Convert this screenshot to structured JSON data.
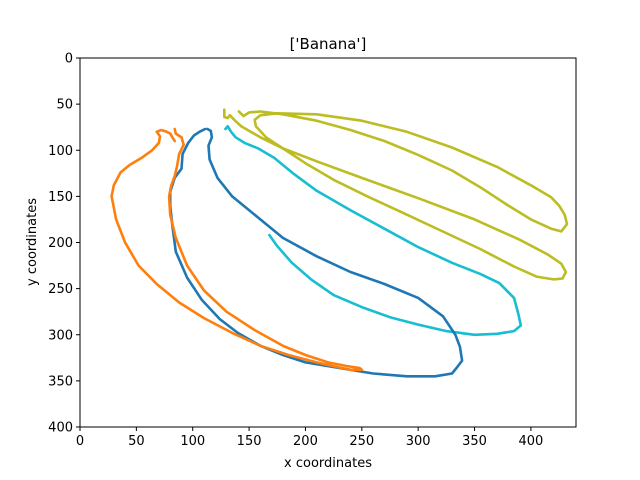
{
  "chart_data": {
    "type": "line",
    "title": "['Banana']",
    "xlabel": "x coordinates",
    "ylabel": "y coordinates",
    "xlim": [
      0,
      440
    ],
    "ylim": [
      400,
      0
    ],
    "y_inverted": true,
    "xticks": [
      0,
      50,
      100,
      150,
      200,
      250,
      300,
      350,
      400
    ],
    "yticks": [
      0,
      50,
      100,
      150,
      200,
      250,
      300,
      350,
      400
    ],
    "grid": false,
    "series": [
      {
        "color": "#bcbd22",
        "closed": false,
        "points": [
          [
            128,
            56
          ],
          [
            128,
            64
          ],
          [
            131,
            65
          ],
          [
            133,
            62
          ],
          [
            136,
            66
          ],
          [
            143,
            74
          ],
          [
            160,
            86
          ],
          [
            180,
            98
          ],
          [
            210,
            112
          ],
          [
            250,
            130
          ],
          [
            300,
            152
          ],
          [
            350,
            175
          ],
          [
            390,
            197
          ],
          [
            415,
            213
          ],
          [
            427,
            223
          ],
          [
            431,
            232
          ],
          [
            428,
            239
          ],
          [
            420,
            240
          ],
          [
            405,
            237
          ],
          [
            385,
            226
          ],
          [
            355,
            207
          ],
          [
            320,
            187
          ],
          [
            285,
            167
          ],
          [
            255,
            150
          ],
          [
            225,
            132
          ],
          [
            200,
            114
          ],
          [
            180,
            98
          ],
          [
            165,
            86
          ],
          [
            156,
            74
          ],
          [
            155,
            67
          ],
          [
            160,
            62
          ],
          [
            175,
            60
          ],
          [
            210,
            61
          ],
          [
            250,
            68
          ],
          [
            290,
            80
          ],
          [
            330,
            97
          ],
          [
            370,
            118
          ],
          [
            400,
            138
          ],
          [
            418,
            151
          ],
          [
            425,
            160
          ],
          [
            430,
            170
          ],
          [
            432,
            180
          ],
          [
            427,
            188
          ],
          [
            418,
            185
          ],
          [
            400,
            175
          ],
          [
            380,
            160
          ],
          [
            355,
            140
          ],
          [
            330,
            122
          ],
          [
            300,
            105
          ],
          [
            270,
            90
          ],
          [
            240,
            78
          ],
          [
            210,
            68
          ],
          [
            180,
            61
          ],
          [
            160,
            58
          ],
          [
            150,
            59
          ],
          [
            145,
            63
          ],
          [
            141,
            58
          ]
        ]
      },
      {
        "color": "#17becf",
        "closed": false,
        "points": [
          [
            129,
            77
          ],
          [
            131,
            74
          ],
          [
            134,
            80
          ],
          [
            138,
            86
          ],
          [
            146,
            92
          ],
          [
            158,
            98
          ],
          [
            172,
            108
          ],
          [
            190,
            126
          ],
          [
            210,
            144
          ],
          [
            240,
            165
          ],
          [
            270,
            185
          ],
          [
            300,
            205
          ],
          [
            330,
            222
          ],
          [
            355,
            234
          ],
          [
            372,
            244
          ],
          [
            385,
            260
          ],
          [
            389,
            278
          ],
          [
            391,
            290
          ],
          [
            385,
            296
          ],
          [
            370,
            299
          ],
          [
            350,
            300
          ],
          [
            325,
            296
          ],
          [
            300,
            289
          ],
          [
            275,
            281
          ],
          [
            250,
            270
          ],
          [
            225,
            257
          ],
          [
            205,
            240
          ],
          [
            188,
            222
          ],
          [
            175,
            204
          ],
          [
            168,
            192
          ]
        ]
      },
      {
        "color": "#1f77b4",
        "closed": false,
        "points": [
          [
            113,
            77
          ],
          [
            116,
            79
          ],
          [
            117,
            86
          ],
          [
            114,
            95
          ],
          [
            115,
            110
          ],
          [
            122,
            130
          ],
          [
            135,
            150
          ],
          [
            155,
            170
          ],
          [
            180,
            195
          ],
          [
            210,
            215
          ],
          [
            240,
            232
          ],
          [
            270,
            245
          ],
          [
            300,
            260
          ],
          [
            322,
            280
          ],
          [
            333,
            300
          ],
          [
            337,
            313
          ],
          [
            339,
            328
          ],
          [
            334,
            336
          ],
          [
            330,
            342
          ],
          [
            315,
            345
          ],
          [
            290,
            345
          ],
          [
            260,
            342
          ],
          [
            230,
            336
          ],
          [
            200,
            330
          ],
          [
            180,
            322
          ],
          [
            160,
            312
          ],
          [
            140,
            298
          ],
          [
            124,
            283
          ],
          [
            108,
            262
          ],
          [
            95,
            238
          ],
          [
            85,
            210
          ],
          [
            82,
            182
          ],
          [
            80,
            160
          ],
          [
            80,
            145
          ],
          [
            84,
            130
          ],
          [
            90,
            120
          ],
          [
            91,
            104
          ],
          [
            96,
            92
          ],
          [
            101,
            84
          ],
          [
            106,
            80
          ],
          [
            111,
            77
          ]
        ]
      },
      {
        "color": "#ff7f0e",
        "closed": false,
        "points": [
          [
            84,
            77
          ],
          [
            85,
            82
          ],
          [
            90,
            86
          ],
          [
            92,
            94
          ],
          [
            88,
            104
          ],
          [
            86,
            118
          ],
          [
            84,
            128
          ],
          [
            81,
            138
          ],
          [
            79,
            150
          ],
          [
            80,
            170
          ],
          [
            85,
            195
          ],
          [
            95,
            225
          ],
          [
            110,
            252
          ],
          [
            130,
            275
          ],
          [
            155,
            295
          ],
          [
            180,
            312
          ],
          [
            200,
            322
          ],
          [
            220,
            330
          ],
          [
            237,
            334
          ],
          [
            248,
            336
          ],
          [
            250,
            338
          ],
          [
            240,
            338
          ],
          [
            228,
            335
          ],
          [
            210,
            330
          ],
          [
            185,
            322
          ],
          [
            160,
            312
          ],
          [
            135,
            298
          ],
          [
            110,
            282
          ],
          [
            88,
            265
          ],
          [
            68,
            245
          ],
          [
            52,
            225
          ],
          [
            40,
            200
          ],
          [
            32,
            175
          ],
          [
            28,
            150
          ],
          [
            30,
            138
          ],
          [
            36,
            124
          ],
          [
            44,
            116
          ],
          [
            55,
            108
          ],
          [
            64,
            100
          ],
          [
            70,
            92
          ],
          [
            71,
            85
          ],
          [
            68,
            80
          ],
          [
            72,
            78
          ],
          [
            77,
            80
          ],
          [
            80,
            82
          ],
          [
            82,
            86
          ],
          [
            84,
            90
          ]
        ]
      }
    ]
  }
}
